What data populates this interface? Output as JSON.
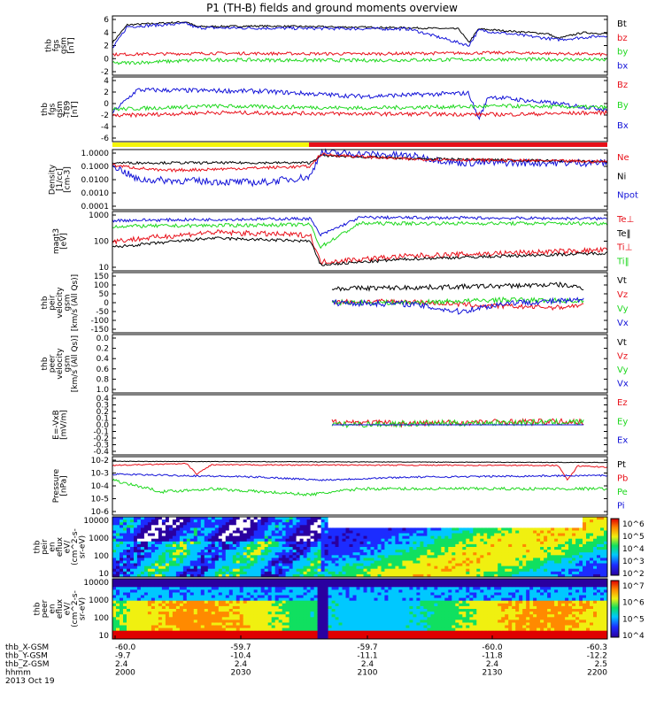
{
  "title": "P1 (TH-B) fields and ground moments overview",
  "colors": {
    "black": "#000000",
    "red": "#e8101a",
    "green": "#1fd81f",
    "blue": "#1313d8",
    "yellow": "#f5f50a"
  },
  "panels": [
    {
      "id": "fgs-gsm",
      "ylabel": [
        "thb",
        "fgs",
        "gsm",
        "[nT]"
      ],
      "yticks": [
        "6",
        "4",
        "2",
        "0",
        "-2"
      ],
      "legend": [
        {
          "label": "Bt",
          "color": "black"
        },
        {
          "label": "bz",
          "color": "red"
        },
        {
          "label": "by",
          "color": "green"
        },
        {
          "label": "bx",
          "color": "blue"
        }
      ]
    },
    {
      "id": "fgs-gsm-t89",
      "ylabel": [
        "thb",
        "fgs",
        "gsm",
        "-T89",
        "[nT]"
      ],
      "yticks": [
        "4",
        "2",
        "0",
        "-2",
        "-4",
        "-6"
      ],
      "legend": [
        {
          "label": "Bz",
          "color": "red"
        },
        {
          "label": "By",
          "color": "green"
        },
        {
          "label": "Bx",
          "color": "blue"
        }
      ]
    },
    {
      "id": "density",
      "ylabel": [
        "Density",
        "[1/cc]",
        "[cm-3]"
      ],
      "yticks": [
        "1.0000",
        "0.1000",
        "0.0100",
        "0.0010",
        "0.0001"
      ],
      "legend": [
        {
          "label": "Ne",
          "color": "red"
        },
        {
          "label": "Ni",
          "color": "black"
        },
        {
          "label": "Npot",
          "color": "blue"
        }
      ]
    },
    {
      "id": "temperature",
      "ylabel": [
        "magt3",
        "[eV]"
      ],
      "yticks": [
        "1000",
        "100",
        "10"
      ],
      "legend": [
        {
          "label": "Te⊥",
          "color": "red"
        },
        {
          "label": "Te‖",
          "color": "black"
        },
        {
          "label": "Ti⊥",
          "color": "red"
        },
        {
          "label": "Ti‖",
          "color": "green"
        }
      ]
    },
    {
      "id": "peir-velocity",
      "ylabel": [
        "thb",
        "peir",
        "velocity",
        "gsm",
        "[km/s (All Qs)]"
      ],
      "yticks": [
        "150",
        "100",
        "50",
        "0",
        "-50",
        "-100",
        "-150"
      ],
      "legend": [
        {
          "label": "Vt",
          "color": "black"
        },
        {
          "label": "Vz",
          "color": "red"
        },
        {
          "label": "Vy",
          "color": "green"
        },
        {
          "label": "Vx",
          "color": "blue"
        }
      ]
    },
    {
      "id": "peer-velocity",
      "ylabel": [
        "thb",
        "peer",
        "velocity",
        "gsm",
        "[km/s (All Qs)]"
      ],
      "yticks": [
        "0.0",
        "0.2",
        "0.4",
        "0.6",
        "0.8",
        "1.0"
      ],
      "legend": [
        {
          "label": "Vt",
          "color": "black"
        },
        {
          "label": "Vz",
          "color": "red"
        },
        {
          "label": "Vy",
          "color": "green"
        },
        {
          "label": "Vx",
          "color": "blue"
        }
      ]
    },
    {
      "id": "e-field",
      "ylabel": [
        "E=-VxB",
        "[mV/m]"
      ],
      "yticks": [
        "0.4",
        "0.3",
        "0.2",
        "0.1",
        "0.0",
        "-0.1",
        "-0.2",
        "-0.3",
        "-0.4"
      ],
      "legend": [
        {
          "label": "Ez",
          "color": "red"
        },
        {
          "label": "Ey",
          "color": "green"
        },
        {
          "label": "Ex",
          "color": "blue"
        }
      ]
    },
    {
      "id": "pressure",
      "ylabel": [
        "Pressure",
        "[nPa]"
      ],
      "yticks": [
        "10-2",
        "10-3",
        "10-4",
        "10-5",
        "10-6"
      ],
      "legend": [
        {
          "label": "Pt",
          "color": "black"
        },
        {
          "label": "Pb",
          "color": "red"
        },
        {
          "label": "Pe",
          "color": "green"
        },
        {
          "label": "Pi",
          "color": "blue"
        }
      ]
    },
    {
      "id": "peir-eflux",
      "ylabel": [
        "thb",
        "peir",
        "en",
        "eflux",
        "eV/",
        "(cm^2-s-",
        "sr-eV)"
      ],
      "yticks": [
        "10000",
        "1000",
        "100",
        "10"
      ],
      "cbar": [
        "10^6",
        "10^5",
        "10^4",
        "10^3",
        "10^2"
      ]
    },
    {
      "id": "peer-eflux",
      "ylabel": [
        "thb",
        "peer",
        "en",
        "eflux",
        "eV/",
        "(cm^2-s-",
        "sr-eV)"
      ],
      "yticks": [
        "10000",
        "1000",
        "100",
        "10"
      ],
      "cbar": [
        "10^7",
        "10^6",
        "10^5",
        "10^4"
      ]
    }
  ],
  "xaxis": {
    "row_labels": [
      "thb_X-GSM",
      "thb_Y-GSM",
      "thb_Z-GSM",
      "hhmm",
      "2013 Oct 19"
    ],
    "ticks": [
      {
        "x": "-60.0",
        "y": "-9.7",
        "z": "2.4",
        "t": "2000"
      },
      {
        "x": "-59.7",
        "y": "-10.4",
        "z": "2.4",
        "t": "2030"
      },
      {
        "x": "-59.7",
        "y": "-11.1",
        "z": "2.4",
        "t": "2100"
      },
      {
        "x": "-60.0",
        "y": "-11.8",
        "z": "2.4",
        "t": "2130"
      },
      {
        "x": "-60.3",
        "y": "-12.2",
        "z": "2.5",
        "t": "2200"
      }
    ]
  },
  "chart_data": [
    {
      "type": "line",
      "title": "P1 (TH-B) fields and ground moments overview",
      "ylabel": "thb fgs gsm [nT]",
      "ylim": [
        -3,
        6.5
      ],
      "x": [
        "2000",
        "2030",
        "2100",
        "2130",
        "2200"
      ],
      "series": [
        {
          "name": "Bt",
          "values": [
            2.5,
            4.8,
            4.6,
            4.3,
            3.6
          ]
        },
        {
          "name": "bz",
          "values": [
            -0.3,
            0.2,
            0.1,
            0.3,
            -0.3
          ]
        },
        {
          "name": "by",
          "values": [
            -1.0,
            -0.5,
            -0.8,
            -0.7,
            -0.6
          ]
        },
        {
          "name": "bx",
          "values": [
            1.8,
            4.6,
            4.4,
            4.1,
            3.3
          ]
        }
      ]
    },
    {
      "type": "line",
      "ylabel": "thb fgs gsm -T89 [nT]",
      "ylim": [
        -7,
        4.5
      ],
      "x": [
        "2000",
        "2030",
        "2100",
        "2130",
        "2200"
      ],
      "series": [
        {
          "name": "Bz",
          "values": [
            -1.5,
            -1.2,
            -1.3,
            -1.5,
            -1.4
          ]
        },
        {
          "name": "By",
          "values": [
            -0.8,
            -0.5,
            -0.6,
            -0.4,
            -0.6
          ]
        },
        {
          "name": "Bx",
          "values": [
            -0.5,
            1.0,
            0.3,
            0.2,
            -0.5
          ]
        }
      ]
    },
    {
      "type": "line",
      "ylabel": "Density [1/cc] [cm-3]",
      "ylim": [
        0.0001,
        1.0
      ],
      "yscale": "log",
      "x": [
        "2000",
        "2030",
        "2100",
        "2130",
        "2200"
      ],
      "series": [
        {
          "name": "Ne",
          "values": [
            0.05,
            0.06,
            0.09,
            0.12,
            0.1
          ]
        },
        {
          "name": "Ni",
          "values": [
            0.06,
            0.07,
            0.1,
            0.1,
            0.1
          ]
        },
        {
          "name": "Npot",
          "values": [
            0.03,
            0.01,
            0.1,
            0.06,
            0.08
          ]
        }
      ]
    },
    {
      "type": "line",
      "ylabel": "magt3 [eV]",
      "ylim": [
        10,
        1000
      ],
      "yscale": "log",
      "x": [
        "2000",
        "2030",
        "2100",
        "2130",
        "2200"
      ],
      "series": [
        {
          "name": "Te⊥",
          "values": [
            80,
            120,
            20,
            40,
            50
          ]
        },
        {
          "name": "Te‖",
          "values": [
            100,
            150,
            15,
            40,
            50
          ]
        },
        {
          "name": "Ti⊥",
          "values": [
            300,
            400,
            300,
            350,
            300
          ]
        },
        {
          "name": "Ti‖",
          "values": [
            250,
            350,
            200,
            250,
            250
          ]
        }
      ]
    },
    {
      "type": "line",
      "ylabel": "thb peir velocity gsm [km/s (All Qs)]",
      "ylim": [
        -150,
        150
      ],
      "x": [
        "2100",
        "2115",
        "2130",
        "2145",
        "2200"
      ],
      "series": [
        {
          "name": "Vt",
          "values": [
            60,
            80,
            70,
            100,
            50
          ]
        },
        {
          "name": "Vz",
          "values": [
            20,
            0,
            -10,
            -40,
            20
          ]
        },
        {
          "name": "Vy",
          "values": [
            10,
            -20,
            30,
            -10,
            10
          ]
        },
        {
          "name": "Vx",
          "values": [
            30,
            -60,
            10,
            20,
            20
          ]
        }
      ]
    },
    {
      "type": "line",
      "ylabel": "thb peer velocity gsm [km/s (All Qs)]",
      "ylim": [
        0,
        1
      ],
      "series": []
    },
    {
      "type": "line",
      "ylabel": "E=-VxB [mV/m]",
      "ylim": [
        -0.4,
        0.4
      ],
      "x": [
        "2100",
        "2115",
        "2130",
        "2145",
        "2200"
      ],
      "series": [
        {
          "name": "Ez",
          "values": [
            0.2,
            0.05,
            0.0,
            -0.02,
            0.05
          ]
        },
        {
          "name": "Ey",
          "values": [
            -0.1,
            0.02,
            0.05,
            0.03,
            0.05
          ]
        },
        {
          "name": "Ex",
          "values": [
            0.0,
            0.0,
            0.0,
            0.0,
            0.0
          ]
        }
      ]
    },
    {
      "type": "line",
      "ylabel": "Pressure [nPa]",
      "ylim": [
        1e-06,
        0.01
      ],
      "yscale": "log",
      "x": [
        "2000",
        "2030",
        "2100",
        "2130",
        "2200"
      ],
      "series": [
        {
          "name": "Pt",
          "values": [
            0.008,
            0.01,
            0.009,
            0.009,
            0.007
          ]
        },
        {
          "name": "Pb",
          "values": [
            0.006,
            0.009,
            0.008,
            0.008,
            0.006
          ]
        },
        {
          "name": "Pe",
          "values": [
            0.0003,
            0.0002,
            0.0004,
            0.0003,
            0.0004
          ]
        },
        {
          "name": "Pi",
          "values": [
            0.002,
            0.0015,
            0.001,
            0.0012,
            0.001
          ]
        }
      ]
    },
    {
      "type": "heatmap",
      "ylabel": "thb peir en eflux eV/(cm^2-s-sr-eV)",
      "ylim": [
        10,
        10000
      ],
      "yscale": "log",
      "zlim": [
        100,
        1000000
      ]
    },
    {
      "type": "heatmap",
      "ylabel": "thb peer en eflux eV/(cm^2-s-sr-eV)",
      "ylim": [
        10,
        10000
      ],
      "yscale": "log",
      "zlim": [
        10000,
        10000000
      ]
    }
  ]
}
